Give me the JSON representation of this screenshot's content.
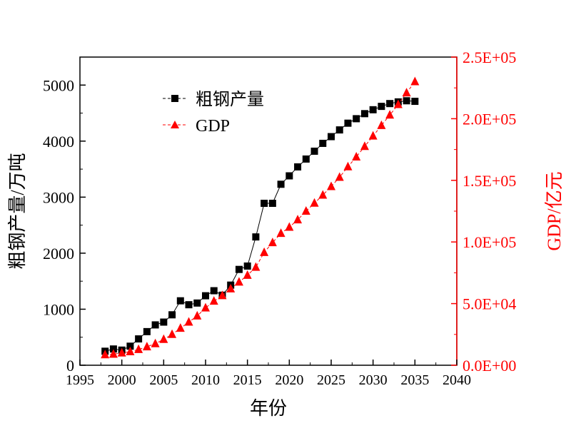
{
  "chart_data": {
    "type": "line",
    "title": "",
    "xlabel": "年份",
    "ylabel_left": "粗钢产量/万吨",
    "ylabel_right": "GDP/亿元",
    "xlim": [
      1995,
      2040
    ],
    "ylim_left": [
      0,
      5500
    ],
    "ylim_right": [
      0,
      250000
    ],
    "x_ticks": [
      "1995",
      "2000",
      "2005",
      "2010",
      "2015",
      "2020",
      "2025",
      "2030",
      "2035",
      "2040"
    ],
    "y_left_ticks": [
      "0",
      "1000",
      "2000",
      "3000",
      "4000",
      "5000"
    ],
    "y_right_ticks": [
      "0.0E+00",
      "5.0E+04",
      "1.0E+05",
      "1.5E+05",
      "2.0E+05",
      "2.5E+05"
    ],
    "grid": false,
    "legend_position": "top-left",
    "colors": {
      "steel": "#000000",
      "gdp": "#ff0000",
      "right_axis": "#ff0000"
    },
    "series": [
      {
        "name": "粗钢产量",
        "axis": "left",
        "marker": "square",
        "x": [
          1998,
          1999,
          2000,
          2001,
          2002,
          2003,
          2004,
          2005,
          2006,
          2007,
          2008,
          2009,
          2010,
          2011,
          2012,
          2013,
          2014,
          2015,
          2016,
          2017,
          2018,
          2019,
          2020,
          2021,
          2022,
          2023,
          2024,
          2025,
          2026,
          2027,
          2028,
          2029,
          2030,
          2031,
          2032,
          2033,
          2034,
          2035
        ],
        "values": [
          250,
          290,
          270,
          340,
          470,
          600,
          720,
          770,
          900,
          1150,
          1080,
          1110,
          1240,
          1330,
          1250,
          1430,
          1710,
          1770,
          2290,
          2890,
          2890,
          3230,
          3380,
          3540,
          3680,
          3820,
          3960,
          4080,
          4200,
          4320,
          4400,
          4490,
          4560,
          4620,
          4670,
          4700,
          4720,
          4710
        ]
      },
      {
        "name": "GDP",
        "axis": "right",
        "marker": "triangle",
        "x": [
          1998,
          1999,
          2000,
          2001,
          2002,
          2003,
          2004,
          2005,
          2006,
          2007,
          2008,
          2009,
          2010,
          2011,
          2012,
          2013,
          2014,
          2015,
          2016,
          2017,
          2018,
          2019,
          2020,
          2021,
          2022,
          2023,
          2024,
          2025,
          2026,
          2027,
          2028,
          2029,
          2030,
          2031,
          2032,
          2033,
          2034,
          2035
        ],
        "values": [
          8500,
          9000,
          10000,
          11000,
          12800,
          15000,
          17500,
          21000,
          25000,
          30000,
          35000,
          40000,
          46500,
          52000,
          56500,
          62000,
          67500,
          73000,
          79500,
          91500,
          99500,
          107000,
          112000,
          118000,
          125000,
          131500,
          138000,
          145000,
          152500,
          161000,
          169000,
          177500,
          186000,
          194500,
          203000,
          211500,
          221000,
          230000
        ]
      }
    ]
  }
}
